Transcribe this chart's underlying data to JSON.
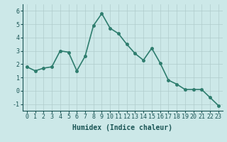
{
  "x": [
    0,
    1,
    2,
    3,
    4,
    5,
    6,
    7,
    8,
    9,
    10,
    11,
    12,
    13,
    14,
    15,
    16,
    17,
    18,
    19,
    20,
    21,
    22,
    23
  ],
  "y": [
    1.8,
    1.5,
    1.7,
    1.8,
    3.0,
    2.9,
    1.5,
    2.6,
    4.9,
    5.8,
    4.7,
    4.3,
    3.5,
    2.8,
    2.3,
    3.2,
    2.1,
    0.8,
    0.5,
    0.1,
    0.1,
    0.1,
    -0.5,
    -1.1
  ],
  "line_color": "#2e7d6e",
  "marker_color": "#2e7d6e",
  "bg_color": "#cce8e8",
  "plot_bg_color": "#cce8e8",
  "grid_color": "#b0cccc",
  "xlabel": "Humidex (Indice chaleur)",
  "xlabel_color": "#1a5555",
  "tick_color": "#1a5555",
  "axis_color": "#1a5555",
  "ylim": [
    -1.5,
    6.5
  ],
  "xlim": [
    -0.5,
    23.5
  ],
  "yticks": [
    -1,
    0,
    1,
    2,
    3,
    4,
    5,
    6
  ],
  "xtick_labels": [
    "0",
    "1",
    "2",
    "3",
    "4",
    "5",
    "6",
    "7",
    "8",
    "9",
    "10",
    "11",
    "12",
    "13",
    "14",
    "15",
    "16",
    "17",
    "18",
    "19",
    "20",
    "21",
    "22",
    "23"
  ],
  "xlabel_fontsize": 7,
  "tick_fontsize": 6,
  "line_width": 1.2,
  "marker_size": 2.5
}
